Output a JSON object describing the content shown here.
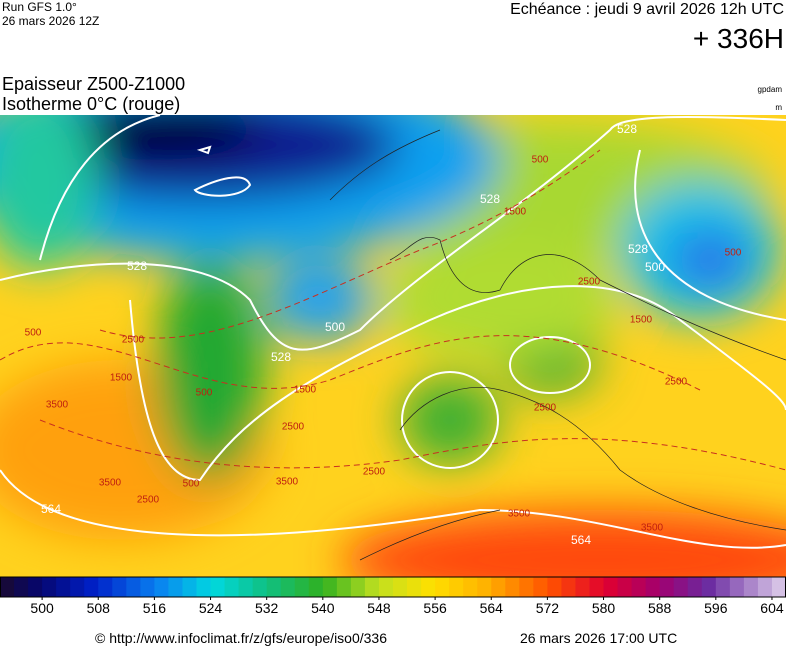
{
  "header": {
    "run": "Run GFS 1.0°",
    "run_date": "26 mars 2026 12Z",
    "echeance": "Echéance : jeudi 9 avril 2026 12h UTC",
    "horizon": "+ 336H",
    "title": "Epaisseur Z500-Z1000",
    "subtitle": "Isotherme 0°C (rouge)",
    "unit1": "gpdam",
    "unit2": "m"
  },
  "map": {
    "contour_labels": [
      528,
      500,
      1500,
      528,
      528,
      500,
      528,
      500,
      500,
      2500,
      1500,
      500,
      528,
      1500,
      2500,
      1500,
      500,
      2500,
      3500,
      2500,
      2500,
      3500,
      2500,
      500,
      3500,
      2500,
      3500,
      3500,
      564,
      564
    ]
  },
  "scale": {
    "lim": [
      494,
      606
    ],
    "ticks": [
      500,
      508,
      516,
      524,
      532,
      540,
      548,
      556,
      564,
      572,
      580,
      588,
      596,
      604
    ]
  },
  "footer": {
    "url": "© http://www.infoclimat.fr/z/gfs/europe/iso0/336",
    "date": "26 mars 2026 17:00 UTC"
  }
}
